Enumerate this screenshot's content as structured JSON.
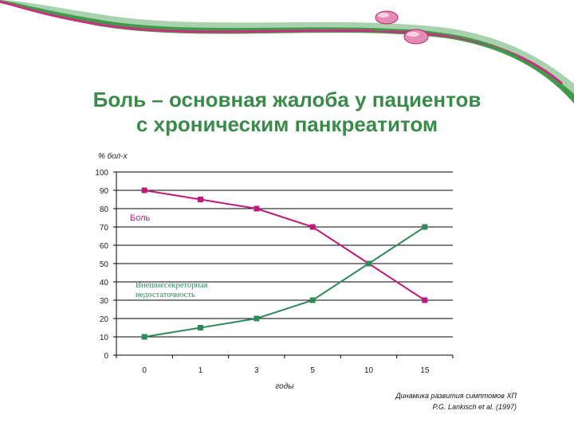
{
  "title_line1": "Боль – основная жалоба у пациентов",
  "title_line2": "с хроническим панкреатитом",
  "source_line1": "Динамика развития симптомов ХП",
  "source_line2": "P.G. Lankisch et al. (1997)",
  "colors": {
    "title": "#3a8a4a",
    "pain": "#c0187a",
    "insufficiency": "#2e8b57",
    "banner_green": "#3f9a4a",
    "banner_magenta": "#cc2f80"
  },
  "chart_data": {
    "type": "line",
    "categories": [
      "0",
      "1",
      "3",
      "5",
      "10",
      "15"
    ],
    "ylabel": "% бол-х",
    "xlabel": "годы",
    "ylim": [
      0,
      100
    ],
    "yticks": [
      "0",
      "10",
      "20",
      "30",
      "40",
      "50",
      "60",
      "70",
      "80",
      "90",
      "100"
    ],
    "grid": "horizontal",
    "series": [
      {
        "name": "Боль",
        "color": "#c0187a",
        "values": [
          90,
          85,
          80,
          70,
          50,
          30
        ]
      },
      {
        "name": "Внешнесекреторная недостаточность",
        "color": "#2e8b57",
        "values": [
          10,
          15,
          20,
          30,
          50,
          70
        ]
      }
    ]
  }
}
